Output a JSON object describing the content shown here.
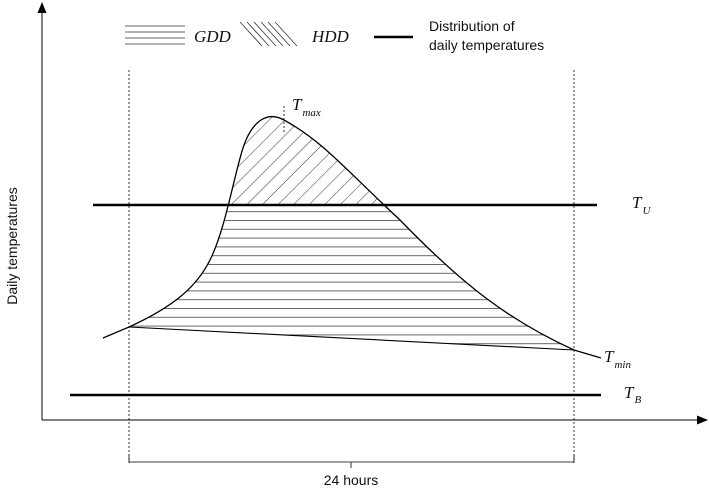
{
  "legend": {
    "gdd": "GDD",
    "hdd": "HDD",
    "distribution_line1": "Distribution of",
    "distribution_line2": "daily temperatures"
  },
  "labels": {
    "y_axis": "Daily temperatures",
    "x_span": "24 hours",
    "t_max_main": "T",
    "t_max_sub": "max",
    "t_u_main": "T",
    "t_u_sub": "U",
    "t_min_main": "T",
    "t_min_sub": "min",
    "t_b_main": "T",
    "t_b_sub": "B"
  }
}
